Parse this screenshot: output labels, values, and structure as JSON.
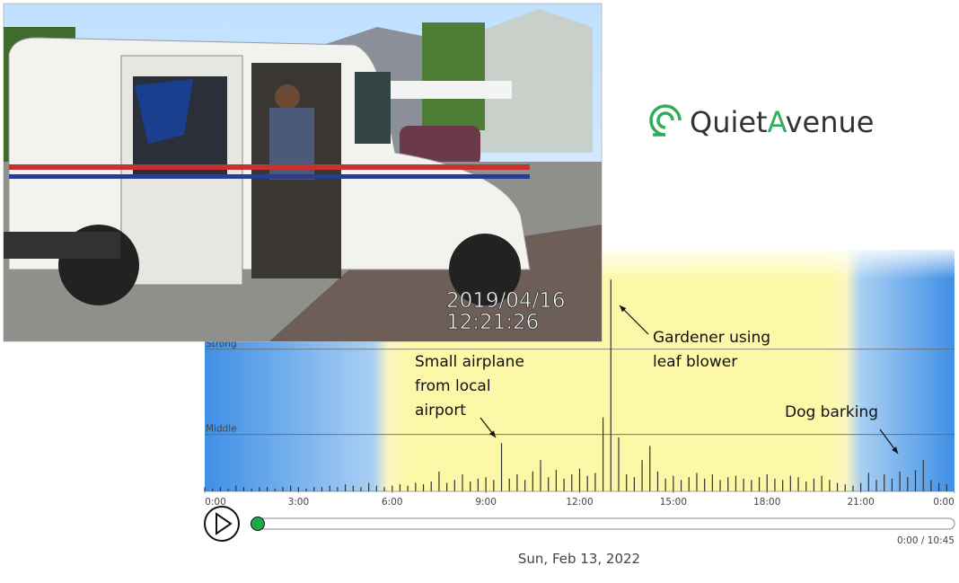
{
  "photo": {
    "date": "2019/04/16",
    "time": "12:21:26"
  },
  "logo": {
    "before": "Quiet",
    "accent": "A",
    "after": "venue"
  },
  "chart_data": {
    "type": "bar",
    "color": "#333333",
    "xlim": [
      0,
      24
    ],
    "xticks": [
      {
        "value": 0,
        "label": "0:00"
      },
      {
        "value": 3,
        "label": "3:00"
      },
      {
        "value": 6,
        "label": "6:00"
      },
      {
        "value": 9,
        "label": "9:00"
      },
      {
        "value": 12,
        "label": "12:00"
      },
      {
        "value": 15,
        "label": "15:00"
      },
      {
        "value": 18,
        "label": "18:00"
      },
      {
        "value": 21,
        "label": "21:00"
      },
      {
        "value": 24,
        "label": "0:00"
      }
    ],
    "ylim": [
      0,
      170
    ],
    "yticks": [
      {
        "value": 40,
        "label": "Middle"
      },
      {
        "value": 100,
        "label": "Strong"
      }
    ],
    "grid": true,
    "x": [
      0,
      0.25,
      0.5,
      0.75,
      1,
      1.25,
      1.5,
      1.75,
      2,
      2.25,
      2.5,
      2.75,
      3,
      3.25,
      3.5,
      3.75,
      4,
      4.25,
      4.5,
      4.75,
      5,
      5.25,
      5.5,
      5.75,
      6,
      6.25,
      6.5,
      6.75,
      7,
      7.25,
      7.5,
      7.75,
      8,
      8.25,
      8.5,
      8.75,
      9,
      9.25,
      9.5,
      9.75,
      10,
      10.25,
      10.5,
      10.75,
      11,
      11.25,
      11.5,
      11.75,
      12,
      12.25,
      12.5,
      12.75,
      13,
      13.25,
      13.5,
      13.75,
      14,
      14.25,
      14.5,
      14.75,
      15,
      15.25,
      15.5,
      15.75,
      16,
      16.25,
      16.5,
      16.75,
      17,
      17.25,
      17.5,
      17.75,
      18,
      18.25,
      18.5,
      18.75,
      19,
      19.25,
      19.5,
      19.75,
      20,
      20.25,
      20.5,
      20.75,
      21,
      21.25,
      21.5,
      21.75,
      22,
      22.25,
      22.5,
      22.75,
      23,
      23.25,
      23.5,
      23.75
    ],
    "values": [
      3,
      2,
      3,
      2,
      4,
      3,
      2,
      3,
      3,
      2,
      3,
      4,
      3,
      2,
      3,
      3,
      4,
      3,
      5,
      4,
      3,
      6,
      4,
      3,
      4,
      5,
      4,
      6,
      5,
      7,
      14,
      6,
      8,
      12,
      7,
      9,
      10,
      8,
      34,
      9,
      12,
      8,
      14,
      22,
      10,
      15,
      9,
      12,
      16,
      11,
      13,
      52,
      149,
      38,
      12,
      10,
      22,
      32,
      14,
      9,
      11,
      8,
      10,
      13,
      9,
      12,
      8,
      10,
      11,
      9,
      8,
      10,
      12,
      9,
      8,
      11,
      10,
      7,
      9,
      11,
      8,
      6,
      5,
      4,
      6,
      13,
      8,
      12,
      9,
      14,
      10,
      15,
      22,
      8,
      6,
      5
    ],
    "annotations": [
      {
        "lines": [
          "Small airplane",
          "from local",
          "airport"
        ]
      },
      {
        "lines": [
          "Gardener using",
          "leaf blower"
        ]
      },
      {
        "lines": [
          "Dog barking"
        ]
      }
    ]
  },
  "player": {
    "time": "0:00 / 10:45",
    "date": "Sun, Feb 13, 2022"
  }
}
